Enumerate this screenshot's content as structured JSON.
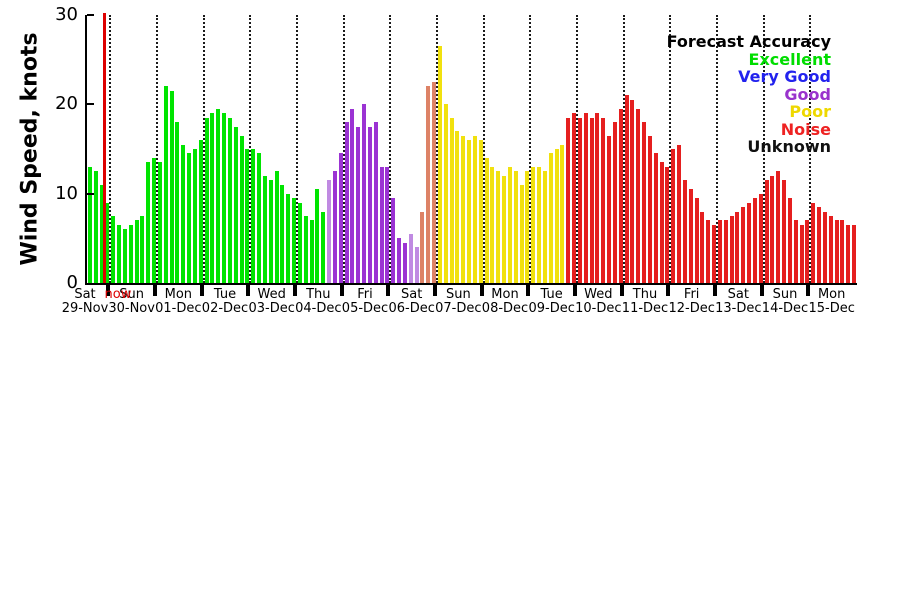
{
  "page": {
    "background": "#ffffff"
  },
  "chart_data": {
    "type": "bar",
    "title": "",
    "xlabel": "",
    "ylabel": "Wind Speed, knots",
    "ylim": [
      0,
      30
    ],
    "yticks": [
      0,
      10,
      20,
      30
    ],
    "grid": "vertical dotted lines at day boundaries",
    "legend": {
      "title": "Forecast Accuracy",
      "position": "top-right",
      "entries": [
        {
          "label": "Excellent",
          "color": "#00dd00"
        },
        {
          "label": "Very Good",
          "color": "#2222ee"
        },
        {
          "label": "Good",
          "color": "#9933cc"
        },
        {
          "label": "Poor",
          "color": "#eed800"
        },
        {
          "label": "Noise",
          "color": "#ee2222"
        },
        {
          "label": "Unknown",
          "color": "#111111"
        }
      ]
    },
    "palette": {
      "e": "#00e400",
      "g": "#9b33d3",
      "gl": "#c08ae2",
      "p": "#f1e10e",
      "n": "#e51f1f",
      "nl": "#dd8266"
    },
    "now_marker": {
      "label": "now",
      "color": "#dd0000",
      "slot": 3
    },
    "days": [
      {
        "weekday": "Sat",
        "date": "29-Nov",
        "bars": [
          {
            "v": 13,
            "c": "e"
          },
          {
            "v": 12.5,
            "c": "e"
          },
          {
            "v": 11,
            "c": "e"
          },
          {
            "v": 9,
            "c": "e"
          }
        ]
      },
      {
        "weekday": "Sun",
        "date": "30-Nov",
        "bars": [
          {
            "v": 7.5,
            "c": "e"
          },
          {
            "v": 6.5,
            "c": "e"
          },
          {
            "v": 6,
            "c": "e"
          },
          {
            "v": 6.5,
            "c": "e"
          },
          {
            "v": 7,
            "c": "e"
          },
          {
            "v": 7.5,
            "c": "e"
          },
          {
            "v": 13.5,
            "c": "e"
          },
          {
            "v": 14,
            "c": "e"
          }
        ]
      },
      {
        "weekday": "Mon",
        "date": "01-Dec",
        "bars": [
          {
            "v": 13.5,
            "c": "e"
          },
          {
            "v": 22,
            "c": "e"
          },
          {
            "v": 21.5,
            "c": "e"
          },
          {
            "v": 18,
            "c": "e"
          },
          {
            "v": 15.5,
            "c": "e"
          },
          {
            "v": 14.5,
            "c": "e"
          },
          {
            "v": 15,
            "c": "e"
          },
          {
            "v": 16,
            "c": "e"
          }
        ]
      },
      {
        "weekday": "Tue",
        "date": "02-Dec",
        "bars": [
          {
            "v": 18.5,
            "c": "e"
          },
          {
            "v": 19,
            "c": "e"
          },
          {
            "v": 19.5,
            "c": "e"
          },
          {
            "v": 19,
            "c": "e"
          },
          {
            "v": 18.5,
            "c": "e"
          },
          {
            "v": 17.5,
            "c": "e"
          },
          {
            "v": 16.5,
            "c": "e"
          },
          {
            "v": 15,
            "c": "e"
          }
        ]
      },
      {
        "weekday": "Wed",
        "date": "03-Dec",
        "bars": [
          {
            "v": 15,
            "c": "e"
          },
          {
            "v": 14.5,
            "c": "e"
          },
          {
            "v": 12,
            "c": "e"
          },
          {
            "v": 11.5,
            "c": "e"
          },
          {
            "v": 12.5,
            "c": "e"
          },
          {
            "v": 11,
            "c": "e"
          },
          {
            "v": 10,
            "c": "e"
          },
          {
            "v": 9.5,
            "c": "e"
          }
        ]
      },
      {
        "weekday": "Thu",
        "date": "04-Dec",
        "bars": [
          {
            "v": 9,
            "c": "e"
          },
          {
            "v": 7.5,
            "c": "e"
          },
          {
            "v": 7,
            "c": "e"
          },
          {
            "v": 10.5,
            "c": "e"
          },
          {
            "v": 8,
            "c": "e"
          },
          {
            "v": 11.5,
            "c": "gl"
          },
          {
            "v": 12.5,
            "c": "g"
          },
          {
            "v": 14.5,
            "c": "g"
          }
        ]
      },
      {
        "weekday": "Fri",
        "date": "05-Dec",
        "bars": [
          {
            "v": 18,
            "c": "g"
          },
          {
            "v": 19.5,
            "c": "g"
          },
          {
            "v": 17.5,
            "c": "g"
          },
          {
            "v": 20,
            "c": "g"
          },
          {
            "v": 17.5,
            "c": "g"
          },
          {
            "v": 18,
            "c": "g"
          },
          {
            "v": 13,
            "c": "g"
          },
          {
            "v": 13,
            "c": "g"
          }
        ]
      },
      {
        "weekday": "Sat",
        "date": "06-Dec",
        "bars": [
          {
            "v": 9.5,
            "c": "g"
          },
          {
            "v": 5,
            "c": "g"
          },
          {
            "v": 4.5,
            "c": "g"
          },
          {
            "v": 5.5,
            "c": "gl"
          },
          {
            "v": 4,
            "c": "gl"
          },
          {
            "v": 8,
            "c": "nl"
          },
          {
            "v": 22,
            "c": "nl"
          },
          {
            "v": 22.5,
            "c": "nl"
          }
        ]
      },
      {
        "weekday": "Sun",
        "date": "07-Dec",
        "bars": [
          {
            "v": 26.5,
            "c": "p"
          },
          {
            "v": 20,
            "c": "p"
          },
          {
            "v": 18.5,
            "c": "p"
          },
          {
            "v": 17,
            "c": "p"
          },
          {
            "v": 16.5,
            "c": "p"
          },
          {
            "v": 16,
            "c": "p"
          },
          {
            "v": 16.5,
            "c": "p"
          },
          {
            "v": 16,
            "c": "p"
          }
        ]
      },
      {
        "weekday": "Mon",
        "date": "08-Dec",
        "bars": [
          {
            "v": 14,
            "c": "p"
          },
          {
            "v": 13,
            "c": "p"
          },
          {
            "v": 12.5,
            "c": "p"
          },
          {
            "v": 12,
            "c": "p"
          },
          {
            "v": 13,
            "c": "p"
          },
          {
            "v": 12.5,
            "c": "p"
          },
          {
            "v": 11,
            "c": "p"
          },
          {
            "v": 12.5,
            "c": "p"
          }
        ]
      },
      {
        "weekday": "Tue",
        "date": "09-Dec",
        "bars": [
          {
            "v": 13,
            "c": "p"
          },
          {
            "v": 13,
            "c": "p"
          },
          {
            "v": 12.5,
            "c": "p"
          },
          {
            "v": 14.5,
            "c": "p"
          },
          {
            "v": 15,
            "c": "p"
          },
          {
            "v": 15.5,
            "c": "p"
          },
          {
            "v": 18.5,
            "c": "n"
          },
          {
            "v": 19,
            "c": "n"
          }
        ]
      },
      {
        "weekday": "Wed",
        "date": "10-Dec",
        "bars": [
          {
            "v": 18.5,
            "c": "n"
          },
          {
            "v": 19,
            "c": "n"
          },
          {
            "v": 18.5,
            "c": "n"
          },
          {
            "v": 19,
            "c": "n"
          },
          {
            "v": 18.5,
            "c": "n"
          },
          {
            "v": 16.5,
            "c": "n"
          },
          {
            "v": 18,
            "c": "n"
          },
          {
            "v": 19.5,
            "c": "n"
          }
        ]
      },
      {
        "weekday": "Thu",
        "date": "11-Dec",
        "bars": [
          {
            "v": 21,
            "c": "n"
          },
          {
            "v": 20.5,
            "c": "n"
          },
          {
            "v": 19.5,
            "c": "n"
          },
          {
            "v": 18,
            "c": "n"
          },
          {
            "v": 16.5,
            "c": "n"
          },
          {
            "v": 14.5,
            "c": "n"
          },
          {
            "v": 13.5,
            "c": "n"
          },
          {
            "v": 13,
            "c": "n"
          }
        ]
      },
      {
        "weekday": "Fri",
        "date": "12-Dec",
        "bars": [
          {
            "v": 15,
            "c": "n"
          },
          {
            "v": 15.5,
            "c": "n"
          },
          {
            "v": 11.5,
            "c": "n"
          },
          {
            "v": 10.5,
            "c": "n"
          },
          {
            "v": 9.5,
            "c": "n"
          },
          {
            "v": 8,
            "c": "n"
          },
          {
            "v": 7,
            "c": "n"
          },
          {
            "v": 6.5,
            "c": "n"
          }
        ]
      },
      {
        "weekday": "Sat",
        "date": "13-Dec",
        "bars": [
          {
            "v": 7,
            "c": "n"
          },
          {
            "v": 7,
            "c": "n"
          },
          {
            "v": 7.5,
            "c": "n"
          },
          {
            "v": 8,
            "c": "n"
          },
          {
            "v": 8.5,
            "c": "n"
          },
          {
            "v": 9,
            "c": "n"
          },
          {
            "v": 9.5,
            "c": "n"
          },
          {
            "v": 10,
            "c": "n"
          }
        ]
      },
      {
        "weekday": "Sun",
        "date": "14-Dec",
        "bars": [
          {
            "v": 11.5,
            "c": "n"
          },
          {
            "v": 12,
            "c": "n"
          },
          {
            "v": 12.5,
            "c": "n"
          },
          {
            "v": 11.5,
            "c": "n"
          },
          {
            "v": 9.5,
            "c": "n"
          },
          {
            "v": 7,
            "c": "n"
          },
          {
            "v": 6.5,
            "c": "n"
          },
          {
            "v": 7,
            "c": "n"
          }
        ]
      },
      {
        "weekday": "Mon",
        "date": "15-Dec",
        "bars": [
          {
            "v": 9,
            "c": "n"
          },
          {
            "v": 8.5,
            "c": "n"
          },
          {
            "v": 8,
            "c": "n"
          },
          {
            "v": 7.5,
            "c": "n"
          },
          {
            "v": 7,
            "c": "n"
          },
          {
            "v": 7,
            "c": "n"
          },
          {
            "v": 6.5,
            "c": "n"
          },
          {
            "v": 6.5,
            "c": "n"
          }
        ]
      }
    ]
  }
}
